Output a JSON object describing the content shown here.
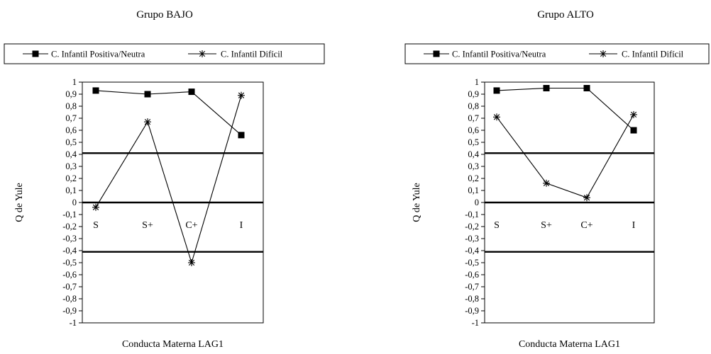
{
  "chart_data": [
    {
      "type": "line",
      "title": "Grupo BAJO",
      "xlabel": "Conducta Materna LAG1",
      "ylabel": "Q de Yule",
      "ylim": [
        -1,
        1
      ],
      "yticks": [
        "1",
        "0,9",
        "0,8",
        "0,7",
        "0,6",
        "0,5",
        "0,4",
        "0,3",
        "0,2",
        "0,1",
        "0",
        "-0,1",
        "-0,2",
        "-0,3",
        "-0,4",
        "-0,5",
        "-0,6",
        "-0,7",
        "-0,8",
        "-0,9",
        "-1"
      ],
      "categories": [
        "S",
        "S+",
        "C+",
        "I"
      ],
      "reference_lines": [
        0.41,
        0,
        -0.41
      ],
      "legend_position": "top",
      "series": [
        {
          "name": "C. Infantil Positiva/Neutra",
          "marker": "square",
          "values": [
            0.93,
            0.9,
            0.92,
            0.56
          ]
        },
        {
          "name": "C. Infantil Difícil",
          "marker": "star",
          "values": [
            -0.04,
            0.67,
            -0.5,
            0.89
          ]
        }
      ]
    },
    {
      "type": "line",
      "title": "Grupo ALTO",
      "xlabel": "Conducta Materna LAG1",
      "ylabel": "Q de Yule",
      "ylim": [
        -1,
        1
      ],
      "yticks": [
        "1",
        "0,9",
        "0,8",
        "0,7",
        "0,6",
        "0,5",
        "0,4",
        "0,3",
        "0,2",
        "0,1",
        "0",
        "-0,1",
        "-0,2",
        "-0,3",
        "-0,4",
        "-0,5",
        "-0,6",
        "-0,7",
        "-0,8",
        "-0,9",
        "-1"
      ],
      "categories": [
        "S",
        "S+",
        "C+",
        "I"
      ],
      "reference_lines": [
        0.41,
        0,
        -0.41
      ],
      "legend_position": "top",
      "series": [
        {
          "name": "C. Infantil Positiva/Neutra",
          "marker": "square",
          "values": [
            0.93,
            0.95,
            0.95,
            0.6
          ]
        },
        {
          "name": "C. Infantil Difícil",
          "marker": "star",
          "values": [
            0.71,
            0.16,
            0.04,
            0.73
          ]
        }
      ]
    }
  ]
}
